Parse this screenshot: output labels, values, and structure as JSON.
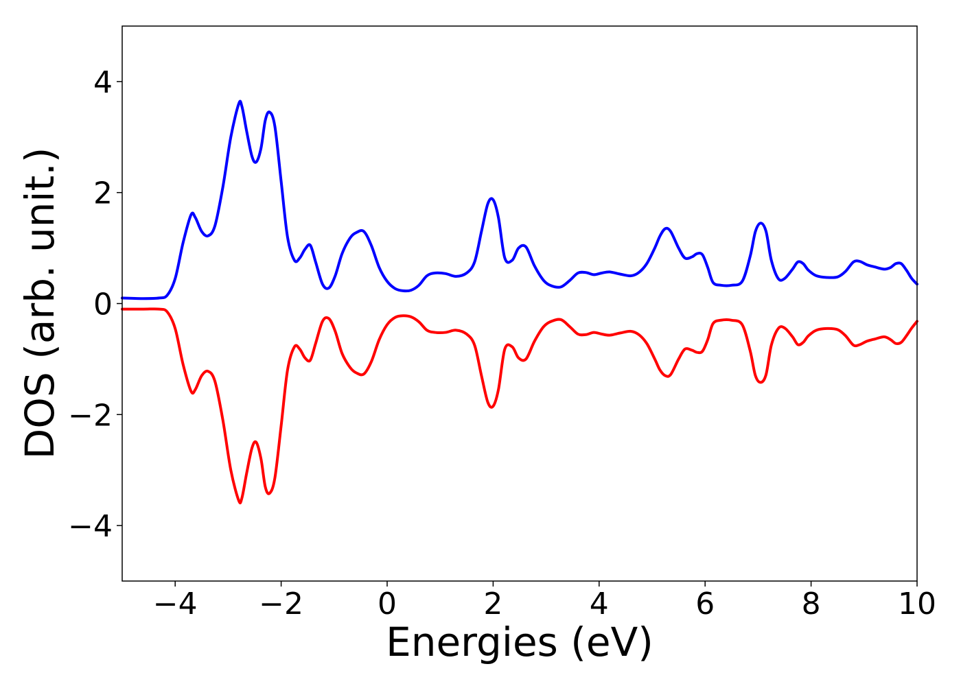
{
  "chart_data": {
    "type": "line",
    "title": "",
    "xlabel": "Energies (eV)",
    "ylabel": "DOS (arb. unit.)",
    "xlim": [
      -5,
      10
    ],
    "ylim": [
      -5,
      5
    ],
    "xticks": [
      -4,
      -2,
      0,
      2,
      4,
      6,
      8,
      10
    ],
    "xtick_labels": [
      "−4",
      "−2",
      "0",
      "2",
      "4",
      "6",
      "8",
      "10"
    ],
    "yticks": [
      -4,
      -2,
      0,
      2,
      4
    ],
    "ytick_labels": [
      "−4",
      "−2",
      "0",
      "2",
      "4"
    ],
    "grid": false,
    "legend": "none",
    "series": [
      {
        "color": "#0000ff",
        "x": [
          -5.0,
          -4.6,
          -4.3,
          -4.15,
          -4.0,
          -3.85,
          -3.7,
          -3.62,
          -3.5,
          -3.38,
          -3.25,
          -3.1,
          -2.95,
          -2.8,
          -2.74,
          -2.65,
          -2.55,
          -2.47,
          -2.38,
          -2.3,
          -2.22,
          -2.12,
          -2.0,
          -1.88,
          -1.75,
          -1.65,
          -1.55,
          -1.45,
          -1.35,
          -1.22,
          -1.1,
          -0.98,
          -0.85,
          -0.7,
          -0.58,
          -0.44,
          -0.3,
          -0.15,
          0.0,
          0.15,
          0.3,
          0.45,
          0.6,
          0.75,
          0.9,
          1.1,
          1.3,
          1.5,
          1.65,
          1.78,
          1.9,
          2.0,
          2.1,
          2.22,
          2.36,
          2.48,
          2.62,
          2.78,
          2.95,
          3.1,
          3.28,
          3.45,
          3.6,
          3.75,
          3.9,
          4.05,
          4.2,
          4.4,
          4.6,
          4.75,
          4.9,
          5.05,
          5.15,
          5.25,
          5.35,
          5.5,
          5.62,
          5.75,
          5.85,
          5.95,
          6.05,
          6.15,
          6.3,
          6.5,
          6.7,
          6.85,
          6.95,
          7.05,
          7.15,
          7.25,
          7.38,
          7.5,
          7.65,
          7.75,
          7.85,
          7.95,
          8.1,
          8.3,
          8.5,
          8.65,
          8.8,
          8.92,
          9.05,
          9.2,
          9.38,
          9.5,
          9.6,
          9.7,
          9.8,
          9.9,
          10.0
        ],
        "y": [
          0.1,
          0.09,
          0.1,
          0.15,
          0.45,
          1.1,
          1.6,
          1.55,
          1.3,
          1.22,
          1.4,
          2.1,
          3.0,
          3.6,
          3.55,
          3.1,
          2.65,
          2.55,
          2.8,
          3.3,
          3.45,
          3.2,
          2.2,
          1.2,
          0.78,
          0.82,
          0.98,
          1.05,
          0.75,
          0.35,
          0.28,
          0.5,
          0.9,
          1.18,
          1.28,
          1.3,
          1.05,
          0.65,
          0.4,
          0.27,
          0.23,
          0.24,
          0.33,
          0.5,
          0.55,
          0.54,
          0.49,
          0.55,
          0.75,
          1.3,
          1.8,
          1.87,
          1.55,
          0.82,
          0.78,
          1.0,
          1.02,
          0.68,
          0.42,
          0.32,
          0.3,
          0.42,
          0.55,
          0.56,
          0.52,
          0.55,
          0.57,
          0.53,
          0.5,
          0.56,
          0.72,
          1.0,
          1.22,
          1.35,
          1.3,
          1.0,
          0.82,
          0.84,
          0.9,
          0.88,
          0.65,
          0.38,
          0.33,
          0.33,
          0.4,
          0.85,
          1.3,
          1.45,
          1.3,
          0.78,
          0.45,
          0.45,
          0.62,
          0.75,
          0.72,
          0.6,
          0.5,
          0.47,
          0.48,
          0.58,
          0.75,
          0.76,
          0.7,
          0.66,
          0.62,
          0.65,
          0.72,
          0.72,
          0.6,
          0.45,
          0.35
        ]
      },
      {
        "color": "#ff0000",
        "x": [
          -5.0,
          -4.6,
          -4.3,
          -4.15,
          -4.0,
          -3.85,
          -3.7,
          -3.62,
          -3.5,
          -3.38,
          -3.25,
          -3.1,
          -2.95,
          -2.8,
          -2.74,
          -2.65,
          -2.55,
          -2.47,
          -2.38,
          -2.3,
          -2.22,
          -2.12,
          -2.0,
          -1.88,
          -1.75,
          -1.65,
          -1.55,
          -1.45,
          -1.35,
          -1.22,
          -1.1,
          -0.98,
          -0.85,
          -0.7,
          -0.58,
          -0.44,
          -0.3,
          -0.15,
          0.0,
          0.15,
          0.3,
          0.45,
          0.6,
          0.75,
          0.9,
          1.1,
          1.3,
          1.5,
          1.65,
          1.78,
          1.9,
          2.0,
          2.1,
          2.22,
          2.36,
          2.48,
          2.62,
          2.78,
          2.95,
          3.1,
          3.28,
          3.45,
          3.6,
          3.75,
          3.9,
          4.05,
          4.2,
          4.4,
          4.6,
          4.75,
          4.9,
          5.05,
          5.15,
          5.25,
          5.35,
          5.5,
          5.62,
          5.75,
          5.85,
          5.95,
          6.05,
          6.15,
          6.3,
          6.5,
          6.7,
          6.85,
          6.95,
          7.05,
          7.15,
          7.25,
          7.38,
          7.5,
          7.65,
          7.75,
          7.85,
          7.95,
          8.1,
          8.3,
          8.5,
          8.65,
          8.8,
          8.92,
          9.05,
          9.2,
          9.38,
          9.5,
          9.6,
          9.7,
          9.8,
          9.9,
          10.0
        ],
        "y": [
          -0.1,
          -0.1,
          -0.1,
          -0.15,
          -0.45,
          -1.1,
          -1.58,
          -1.55,
          -1.3,
          -1.22,
          -1.4,
          -2.1,
          -3.0,
          -3.55,
          -3.5,
          -3.05,
          -2.6,
          -2.5,
          -2.8,
          -3.3,
          -3.42,
          -3.15,
          -2.2,
          -1.2,
          -0.78,
          -0.82,
          -0.98,
          -1.02,
          -0.72,
          -0.32,
          -0.27,
          -0.5,
          -0.9,
          -1.15,
          -1.25,
          -1.27,
          -1.05,
          -0.65,
          -0.38,
          -0.25,
          -0.22,
          -0.24,
          -0.33,
          -0.48,
          -0.52,
          -0.52,
          -0.48,
          -0.55,
          -0.75,
          -1.3,
          -1.78,
          -1.85,
          -1.55,
          -0.82,
          -0.78,
          -0.98,
          -1.0,
          -0.68,
          -0.42,
          -0.32,
          -0.29,
          -0.42,
          -0.55,
          -0.56,
          -0.52,
          -0.55,
          -0.57,
          -0.53,
          -0.5,
          -0.56,
          -0.72,
          -1.0,
          -1.2,
          -1.3,
          -1.28,
          -1.0,
          -0.82,
          -0.84,
          -0.88,
          -0.86,
          -0.65,
          -0.36,
          -0.3,
          -0.3,
          -0.38,
          -0.85,
          -1.3,
          -1.42,
          -1.28,
          -0.75,
          -0.45,
          -0.44,
          -0.6,
          -0.74,
          -0.7,
          -0.58,
          -0.48,
          -0.45,
          -0.47,
          -0.58,
          -0.75,
          -0.74,
          -0.68,
          -0.64,
          -0.6,
          -0.65,
          -0.72,
          -0.7,
          -0.58,
          -0.44,
          -0.32
        ]
      }
    ]
  }
}
